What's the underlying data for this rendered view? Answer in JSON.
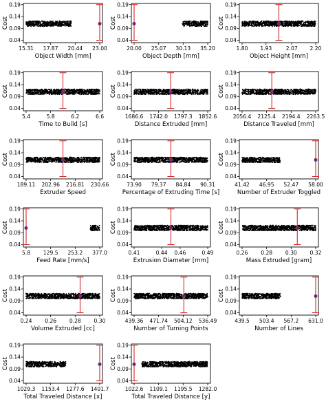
{
  "chart_data": {
    "type": "scatter",
    "ylabel": "Cost",
    "y_ticks": [
      "0.04",
      "0.09",
      "0.14",
      "0.19"
    ],
    "ylim": [
      0.03,
      0.195
    ],
    "error_bar_color": "#d62728",
    "marker_color": "#1f3fbf",
    "point_color": "#000000",
    "panels": [
      {
        "xlabel": "Object Width [mm]",
        "x_ticks": [
          "15.31",
          "17.87",
          "20.44",
          "23.00"
        ],
        "xlim": [
          15.31,
          23.0
        ],
        "clusters": [
          {
            "x": [
              15.31,
              20.0
            ],
            "y": [
              0.099,
              0.121
            ]
          },
          {
            "x": [
              23.0,
              23.0
            ],
            "y": [
              0.105,
              0.115
            ]
          }
        ],
        "errorbar": {
          "x": 23.0,
          "y": 0.11,
          "ylow": 0.04,
          "yhigh": 0.19
        }
      },
      {
        "xlabel": "Object Depth [mm]",
        "x_ticks": [
          "20.00",
          "25.07",
          "30.13",
          "35.20"
        ],
        "xlim": [
          20.0,
          35.2
        ],
        "clusters": [
          {
            "x": [
              30.0,
              35.2
            ],
            "y": [
              0.099,
              0.121
            ]
          },
          {
            "x": [
              20.0,
              20.0
            ],
            "y": [
              0.105,
              0.115
            ]
          }
        ],
        "errorbar": {
          "x": 20.0,
          "y": 0.11,
          "ylow": 0.04,
          "yhigh": 0.19
        }
      },
      {
        "xlabel": "Object Height [mm]",
        "x_ticks": [
          "1.80",
          "1.93",
          "2.07",
          "2.20"
        ],
        "xlim": [
          1.8,
          2.2
        ],
        "clusters": [
          {
            "x": [
              1.8,
              2.2
            ],
            "y": [
              0.099,
              0.121
            ]
          }
        ],
        "errorbar": {
          "x": 2.0,
          "y": 0.11,
          "ylow": 0.04,
          "yhigh": 0.19
        }
      },
      {
        "xlabel": "Time to Build [s]",
        "x_ticks": [
          "5.4",
          "5.8",
          "6.2",
          "6.6"
        ],
        "xlim": [
          5.4,
          6.6
        ],
        "clusters": [
          {
            "x": [
              5.4,
              6.6
            ],
            "y": [
              0.099,
              0.121
            ]
          }
        ],
        "errorbar": {
          "x": 6.0,
          "y": 0.11,
          "ylow": 0.04,
          "yhigh": 0.19
        }
      },
      {
        "xlabel": "Distance Extruded [mm]",
        "x_ticks": [
          "1686.6",
          "1742.0",
          "1797.3",
          "1852.6"
        ],
        "xlim": [
          1686.6,
          1852.6
        ],
        "clusters": [
          {
            "x": [
              1686.6,
              1852.6
            ],
            "y": [
              0.099,
              0.121
            ]
          }
        ],
        "errorbar": {
          "x": 1769.0,
          "y": 0.11,
          "ylow": 0.04,
          "yhigh": 0.19
        }
      },
      {
        "xlabel": "Distance Traveled [mm]",
        "x_ticks": [
          "2056.4",
          "2125.4",
          "2194.4",
          "2263.5"
        ],
        "xlim": [
          2056.4,
          2263.5
        ],
        "clusters": [
          {
            "x": [
              2056.4,
              2263.5
            ],
            "y": [
              0.099,
              0.121
            ]
          }
        ],
        "errorbar": {
          "x": 2140.0,
          "y": 0.11,
          "ylow": 0.04,
          "yhigh": 0.19
        }
      },
      {
        "xlabel": "Extruder Speed",
        "x_ticks": [
          "189.11",
          "202.96",
          "216.81",
          "230.66"
        ],
        "xlim": [
          189.11,
          230.66
        ],
        "clusters": [
          {
            "x": [
              189.11,
              230.66
            ],
            "y": [
              0.099,
              0.121
            ]
          }
        ],
        "errorbar": {
          "x": 209.9,
          "y": 0.11,
          "ylow": 0.04,
          "yhigh": 0.19
        }
      },
      {
        "xlabel": "Percentage of Extruding Time [s]",
        "x_ticks": [
          "73.90",
          "79.37",
          "84.84",
          "90.31"
        ],
        "xlim": [
          73.9,
          90.31
        ],
        "clusters": [
          {
            "x": [
              73.9,
              90.31
            ],
            "y": [
              0.099,
              0.121
            ]
          }
        ],
        "errorbar": {
          "x": 82.1,
          "y": 0.11,
          "ylow": 0.04,
          "yhigh": 0.19
        }
      },
      {
        "xlabel": "Number of Extruder Toggled",
        "x_ticks": [
          "41.42",
          "46.95",
          "52.47",
          "58.00"
        ],
        "xlim": [
          41.42,
          58.0
        ],
        "clusters": [
          {
            "x": [
              41.42,
              50.0
            ],
            "y": [
              0.099,
              0.121
            ]
          },
          {
            "x": [
              58.0,
              58.0
            ],
            "y": [
              0.105,
              0.115
            ]
          }
        ],
        "errorbar": {
          "x": 58.0,
          "y": 0.11,
          "ylow": 0.04,
          "yhigh": 0.19
        }
      },
      {
        "xlabel": "Feed Rate [mm/s]",
        "x_ticks": [
          "5.8",
          "129.5",
          "253.2",
          "377.0"
        ],
        "xlim": [
          5.8,
          377.0
        ],
        "clusters": [
          {
            "x": [
              330.0,
              377.0
            ],
            "y": [
              0.099,
              0.121
            ]
          },
          {
            "x": [
              5.8,
              5.8
            ],
            "y": [
              0.105,
              0.115
            ]
          }
        ],
        "errorbar": {
          "x": 5.8,
          "y": 0.11,
          "ylow": 0.04,
          "yhigh": 0.19
        }
      },
      {
        "xlabel": "Extrusion Diameter [mm]",
        "x_ticks": [
          "0.41",
          "0.44",
          "0.46",
          "0.49"
        ],
        "xlim": [
          0.41,
          0.49
        ],
        "clusters": [
          {
            "x": [
              0.41,
              0.49
            ],
            "y": [
              0.099,
              0.121
            ]
          }
        ],
        "errorbar": {
          "x": 0.45,
          "y": 0.11,
          "ylow": 0.04,
          "yhigh": 0.19
        }
      },
      {
        "xlabel": "Mass Extruded [gram]",
        "x_ticks": [
          "0.26",
          "0.28",
          "0.30",
          "0.32"
        ],
        "xlim": [
          0.26,
          0.32
        ],
        "clusters": [
          {
            "x": [
              0.26,
              0.32
            ],
            "y": [
              0.099,
              0.121
            ]
          }
        ],
        "errorbar": {
          "x": 0.305,
          "y": 0.11,
          "ylow": 0.04,
          "yhigh": 0.19
        }
      },
      {
        "xlabel": "Volume Extruded [cc]",
        "x_ticks": [
          "0.24",
          "0.26",
          "0.28",
          "0.30"
        ],
        "xlim": [
          0.24,
          0.3
        ],
        "clusters": [
          {
            "x": [
              0.24,
              0.3
            ],
            "y": [
              0.099,
              0.121
            ]
          }
        ],
        "errorbar": {
          "x": 0.284,
          "y": 0.11,
          "ylow": 0.04,
          "yhigh": 0.19
        }
      },
      {
        "xlabel": "Number of Turning Points",
        "x_ticks": [
          "439.36",
          "471.74",
          "504.12",
          "536.49"
        ],
        "xlim": [
          439.36,
          536.49
        ],
        "clusters": [
          {
            "x": [
              439.36,
              536.49
            ],
            "y": [
              0.099,
              0.121
            ]
          }
        ],
        "errorbar": {
          "x": 505.0,
          "y": 0.11,
          "ylow": 0.04,
          "yhigh": 0.19
        }
      },
      {
        "xlabel": "Number of Lines",
        "x_ticks": [
          "439.5",
          "503.4",
          "567.2",
          "631.0"
        ],
        "xlim": [
          439.5,
          631.0
        ],
        "clusters": [
          {
            "x": [
              439.5,
              540.0
            ],
            "y": [
              0.099,
              0.121
            ]
          },
          {
            "x": [
              631.0,
              631.0
            ],
            "y": [
              0.105,
              0.115
            ]
          }
        ],
        "errorbar": {
          "x": 631.0,
          "y": 0.11,
          "ylow": 0.04,
          "yhigh": 0.19
        }
      },
      {
        "xlabel": "Total Traveled Distance [x]",
        "x_ticks": [
          "1029.3",
          "1153.4",
          "1277.6",
          "1401.7"
        ],
        "xlim": [
          1029.3,
          1401.7
        ],
        "clusters": [
          {
            "x": [
              1029.3,
              1230.0
            ],
            "y": [
              0.099,
              0.121
            ]
          },
          {
            "x": [
              1401.7,
              1401.7
            ],
            "y": [
              0.105,
              0.115
            ]
          }
        ],
        "errorbar": {
          "x": 1401.7,
          "y": 0.11,
          "ylow": 0.04,
          "yhigh": 0.19
        }
      },
      {
        "xlabel": "Total Traveled Distance [y]",
        "x_ticks": [
          "1022.6",
          "1109.1",
          "1195.5",
          "1282.0"
        ],
        "xlim": [
          1022.6,
          1282.0
        ],
        "clusters": [
          {
            "x": [
              1050.0,
              1282.0
            ],
            "y": [
              0.099,
              0.121
            ]
          },
          {
            "x": [
              1022.6,
              1022.6
            ],
            "y": [
              0.105,
              0.115
            ]
          }
        ],
        "errorbar": {
          "x": 1022.6,
          "y": 0.11,
          "ylow": 0.04,
          "yhigh": 0.19
        }
      }
    ]
  }
}
